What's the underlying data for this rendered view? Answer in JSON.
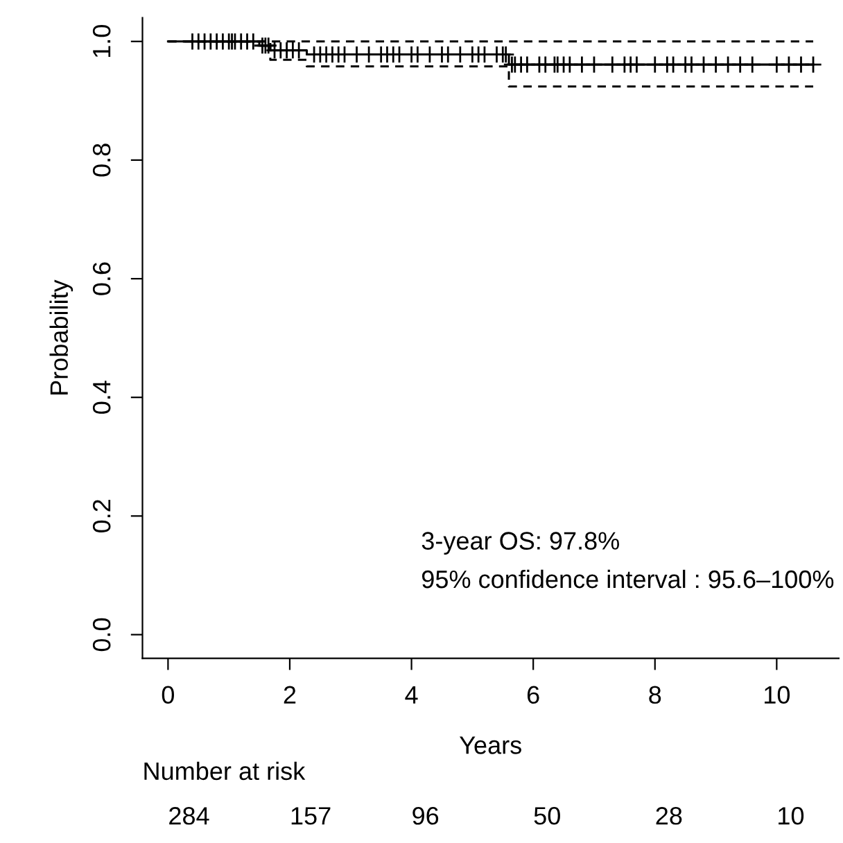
{
  "chart_data": {
    "type": "step",
    "xlabel": "Years",
    "ylabel": "Probability",
    "xlim": [
      -0.42,
      11.02
    ],
    "ylim": [
      -0.04,
      1.04
    ],
    "xticks": [
      0,
      2,
      4,
      6,
      8,
      10
    ],
    "yticks": [
      {
        "value": 0,
        "label": "0.0"
      },
      {
        "value": 0.2,
        "label": "0.2"
      },
      {
        "value": 0.4,
        "label": "0.4"
      },
      {
        "value": 0.6,
        "label": "0.6"
      },
      {
        "value": 0.8,
        "label": "0.8"
      },
      {
        "value": 1,
        "label": "1.0"
      }
    ],
    "series": [
      {
        "color": "#000000",
        "line_style": "solid",
        "x": [
          0,
          1.5,
          1.68,
          2.28,
          5.6,
          10.6
        ],
        "values": [
          1,
          0.993,
          0.985,
          0.978,
          0.961,
          0.961
        ]
      },
      {
        "type": "step",
        "color": "#000000",
        "line_style": "dashed",
        "x": [
          0,
          10.6
        ],
        "values": [
          1,
          1
        ]
      },
      {
        "type": "step",
        "color": "#000000",
        "line_style": "dashed",
        "x": [
          0,
          1.68,
          2.28,
          5.6,
          10.6
        ],
        "values": [
          1,
          0.969,
          0.958,
          0.924,
          0.924
        ]
      },
      {
        "type": "scatter",
        "color": "#000000",
        "marker": "cross",
        "x": [
          0.4,
          0.5,
          0.6,
          0.7,
          0.8,
          0.9,
          1.0,
          1.05,
          1.1,
          1.2,
          1.3,
          1.4,
          1.55,
          1.6,
          1.65,
          1.75,
          1.85,
          1.95,
          2.05,
          2.15,
          2.4,
          2.5,
          2.6,
          2.7,
          2.8,
          2.9,
          3.1,
          3.3,
          3.5,
          3.6,
          3.7,
          3.8,
          4.0,
          4.1,
          4.3,
          4.5,
          4.6,
          4.8,
          5.0,
          5.1,
          5.2,
          5.4,
          5.5,
          5.55,
          5.65,
          5.7,
          5.8,
          5.9,
          6.1,
          6.2,
          6.35,
          6.4,
          6.5,
          6.6,
          6.8,
          7.0,
          7.3,
          7.5,
          7.6,
          7.7,
          8.0,
          8.2,
          8.3,
          8.5,
          8.6,
          8.8,
          9.0,
          9.2,
          9.4,
          9.6,
          10.0,
          10.2,
          10.4,
          10.6
        ],
        "values": [
          1,
          1,
          1,
          1,
          1,
          1,
          1,
          1,
          1,
          1,
          1,
          1,
          0.993,
          0.993,
          0.993,
          0.985,
          0.985,
          0.985,
          0.985,
          0.985,
          0.978,
          0.978,
          0.978,
          0.978,
          0.978,
          0.978,
          0.978,
          0.978,
          0.978,
          0.978,
          0.978,
          0.978,
          0.978,
          0.978,
          0.978,
          0.978,
          0.978,
          0.978,
          0.978,
          0.978,
          0.978,
          0.978,
          0.978,
          0.978,
          0.961,
          0.961,
          0.961,
          0.961,
          0.961,
          0.961,
          0.961,
          0.961,
          0.961,
          0.961,
          0.961,
          0.961,
          0.961,
          0.961,
          0.961,
          0.961,
          0.961,
          0.961,
          0.961,
          0.961,
          0.961,
          0.961,
          0.961,
          0.961,
          0.961,
          0.961,
          0.961,
          0.961,
          0.961,
          0.961
        ]
      }
    ],
    "annotations": [
      "3-year OS: 97.8%",
      "95% confidence interval : 95.6–100%",
      "Number at risk",
      "284",
      "157",
      "96",
      "50",
      "28",
      "10"
    ],
    "grid": false,
    "legend": false
  }
}
